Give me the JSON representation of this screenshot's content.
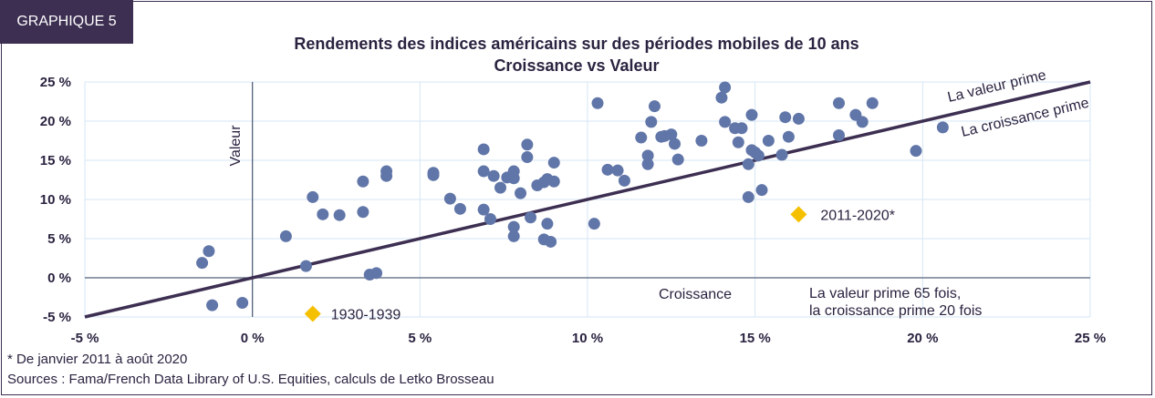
{
  "badge": "GRAPHIQUE 5",
  "chart_data": {
    "type": "scatter",
    "title": "Rendements des indices américains sur des périodes mobiles de 10 ans",
    "subtitle": "Croissance vs Valeur",
    "xlabel": "Croissance",
    "ylabel": "Valeur",
    "xlim": [
      -5,
      25
    ],
    "ylim": [
      -5,
      25
    ],
    "x_ticks": [
      "-5 %",
      "0 %",
      "5 %",
      "10 %",
      "15 %",
      "20 %",
      "25 %"
    ],
    "y_ticks": [
      "25 %",
      "20 %",
      "15 %",
      "10 %",
      "5 %",
      "0 %",
      "-5 %"
    ],
    "grid": true,
    "points": [
      [
        -1.5,
        1.9
      ],
      [
        -1.3,
        3.4
      ],
      [
        -1.2,
        -3.5
      ],
      [
        -0.3,
        -3.2
      ],
      [
        1.0,
        5.3
      ],
      [
        1.6,
        1.5
      ],
      [
        1.8,
        10.3
      ],
      [
        2.1,
        8.1
      ],
      [
        2.6,
        8.0
      ],
      [
        3.3,
        12.3
      ],
      [
        3.3,
        8.4
      ],
      [
        3.5,
        0.4
      ],
      [
        3.7,
        0.6
      ],
      [
        4.0,
        13.0
      ],
      [
        4.0,
        13.6
      ],
      [
        5.4,
        13.4
      ],
      [
        5.4,
        13.1
      ],
      [
        5.9,
        10.1
      ],
      [
        6.2,
        8.8
      ],
      [
        6.9,
        16.4
      ],
      [
        6.9,
        13.6
      ],
      [
        6.9,
        8.7
      ],
      [
        7.1,
        7.5
      ],
      [
        7.2,
        13.0
      ],
      [
        7.4,
        11.5
      ],
      [
        7.6,
        12.8
      ],
      [
        7.8,
        13.6
      ],
      [
        7.8,
        12.7
      ],
      [
        7.8,
        6.5
      ],
      [
        7.8,
        5.3
      ],
      [
        8.0,
        10.8
      ],
      [
        8.2,
        17.0
      ],
      [
        8.2,
        15.4
      ],
      [
        8.3,
        7.7
      ],
      [
        8.5,
        11.8
      ],
      [
        8.7,
        12.2
      ],
      [
        8.7,
        4.9
      ],
      [
        8.8,
        12.6
      ],
      [
        8.8,
        6.9
      ],
      [
        8.9,
        4.6
      ],
      [
        9.0,
        14.7
      ],
      [
        9.0,
        12.3
      ],
      [
        10.2,
        6.9
      ],
      [
        10.3,
        22.3
      ],
      [
        10.6,
        13.8
      ],
      [
        10.9,
        13.7
      ],
      [
        11.1,
        12.4
      ],
      [
        11.6,
        17.9
      ],
      [
        11.8,
        15.6
      ],
      [
        11.8,
        14.5
      ],
      [
        11.9,
        19.9
      ],
      [
        12.0,
        21.9
      ],
      [
        12.2,
        18.0
      ],
      [
        12.3,
        18.1
      ],
      [
        12.5,
        18.3
      ],
      [
        12.6,
        17.1
      ],
      [
        12.7,
        15.1
      ],
      [
        13.4,
        17.5
      ],
      [
        14.0,
        23.0
      ],
      [
        14.1,
        24.3
      ],
      [
        14.1,
        19.9
      ],
      [
        14.4,
        19.1
      ],
      [
        14.6,
        19.1
      ],
      [
        14.5,
        17.3
      ],
      [
        14.8,
        14.5
      ],
      [
        14.8,
        10.3
      ],
      [
        14.9,
        16.3
      ],
      [
        14.9,
        20.8
      ],
      [
        15.0,
        16.0
      ],
      [
        15.1,
        15.6
      ],
      [
        15.2,
        11.2
      ],
      [
        15.4,
        17.5
      ],
      [
        15.8,
        15.7
      ],
      [
        15.9,
        20.5
      ],
      [
        16.0,
        18.0
      ],
      [
        16.3,
        20.3
      ],
      [
        17.5,
        22.3
      ],
      [
        17.5,
        18.2
      ],
      [
        18.0,
        20.8
      ],
      [
        18.2,
        19.9
      ],
      [
        18.5,
        22.3
      ],
      [
        19.8,
        16.2
      ],
      [
        20.6,
        19.2
      ]
    ],
    "highlights": [
      {
        "label": "2011-2020*",
        "x": 16.3,
        "y": 8.1
      },
      {
        "label": "1930-1939",
        "x": 1.8,
        "y": -4.6
      }
    ],
    "annotations": {
      "line_above": "La valeur prime",
      "line_below": "La croissance prime",
      "summary_1": "La valeur prime 65 fois,",
      "summary_2": "la croissance prime 20 fois"
    },
    "colors": {
      "points": "#6176a8",
      "highlight": "#f5c000",
      "diagonal": "#3d2f52",
      "grid": "#d6e6f4",
      "axis": "#55617a"
    }
  },
  "footnotes": {
    "note": "* De janvier 2011 à août 2020",
    "sources": "Sources : Fama/French Data Library of U.S. Equities, calculs de Letko Brosseau"
  }
}
